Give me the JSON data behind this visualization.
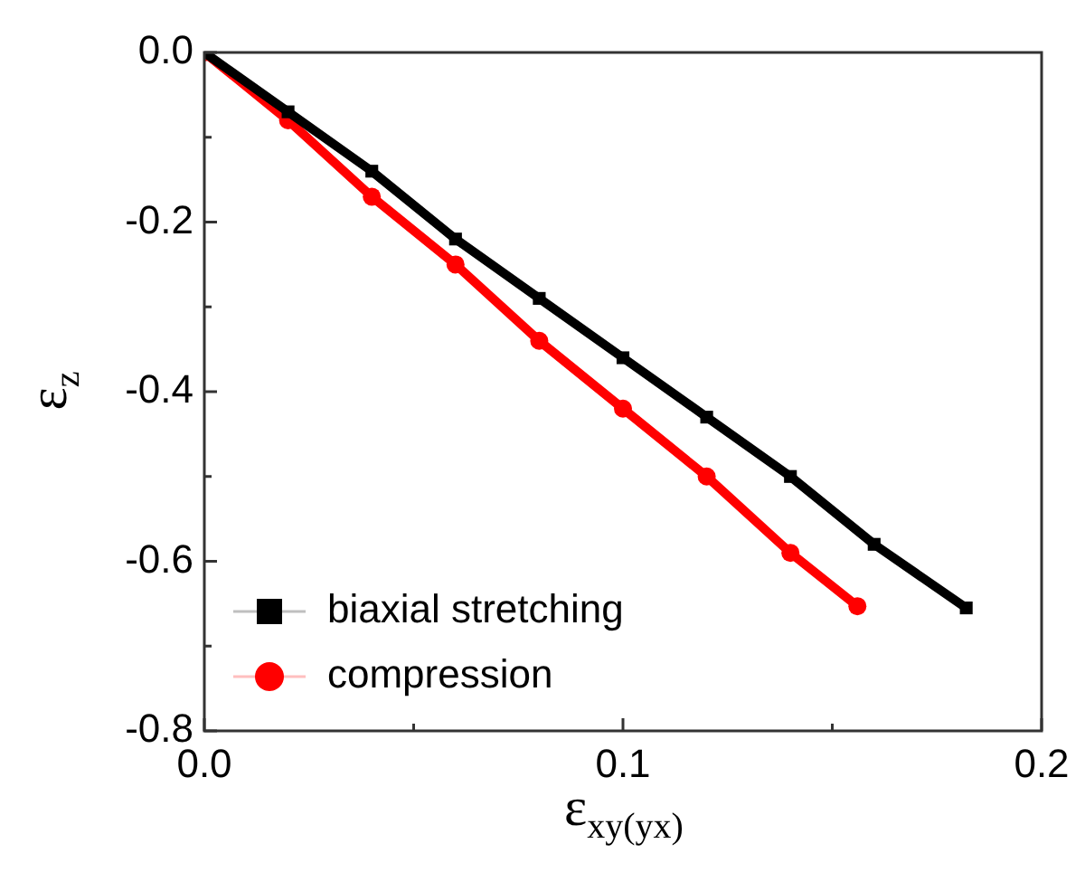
{
  "chart_data": {
    "type": "line",
    "xlabel": "ε$_{xy(yx)}$",
    "ylabel": "ε$_{z}$",
    "xlim": [
      0,
      0.2
    ],
    "ylim": [
      -0.8,
      0
    ],
    "xticks": [
      {
        "value": 0,
        "label": "0.0"
      },
      {
        "value": 0.05,
        "label": null
      },
      0.1,
      {
        "value": 0.15,
        "label": null
      },
      0.2
    ],
    "yticks": [
      {
        "value": -0.8,
        "label": "-0.8"
      },
      {
        "value": -0.7,
        "label": null
      },
      {
        "value": -0.6,
        "label": "-0.6"
      },
      {
        "value": -0.5,
        "label": null
      },
      {
        "value": -0.4,
        "label": "-0.4"
      },
      {
        "value": -0.3,
        "label": null
      },
      {
        "value": -0.2,
        "label": "-0.2"
      },
      {
        "value": -0.1,
        "label": null
      },
      {
        "value": 0,
        "label": "0.0"
      }
    ],
    "grid": false,
    "legend": "bottom left",
    "series": [
      {
        "name": "biaxial stretching",
        "color": "#000000",
        "marker": "square",
        "x": [
          0,
          0.02,
          0.04,
          0.06,
          0.08,
          0.1,
          0.12,
          0.14,
          0.16,
          0.182
        ],
        "values": [
          0,
          -0.07,
          -0.14,
          -0.22,
          -0.29,
          -0.36,
          -0.43,
          -0.5,
          -0.58,
          -0.655
        ]
      },
      {
        "name": "compression",
        "color": "#ff0000",
        "marker": "circle",
        "x": [
          0,
          0.02,
          0.04,
          0.06,
          0.08,
          0.1,
          0.12,
          0.14,
          0.156
        ],
        "values": [
          0,
          -0.08,
          -0.17,
          -0.25,
          -0.34,
          -0.42,
          -0.5,
          -0.59,
          -0.653
        ]
      }
    ]
  }
}
